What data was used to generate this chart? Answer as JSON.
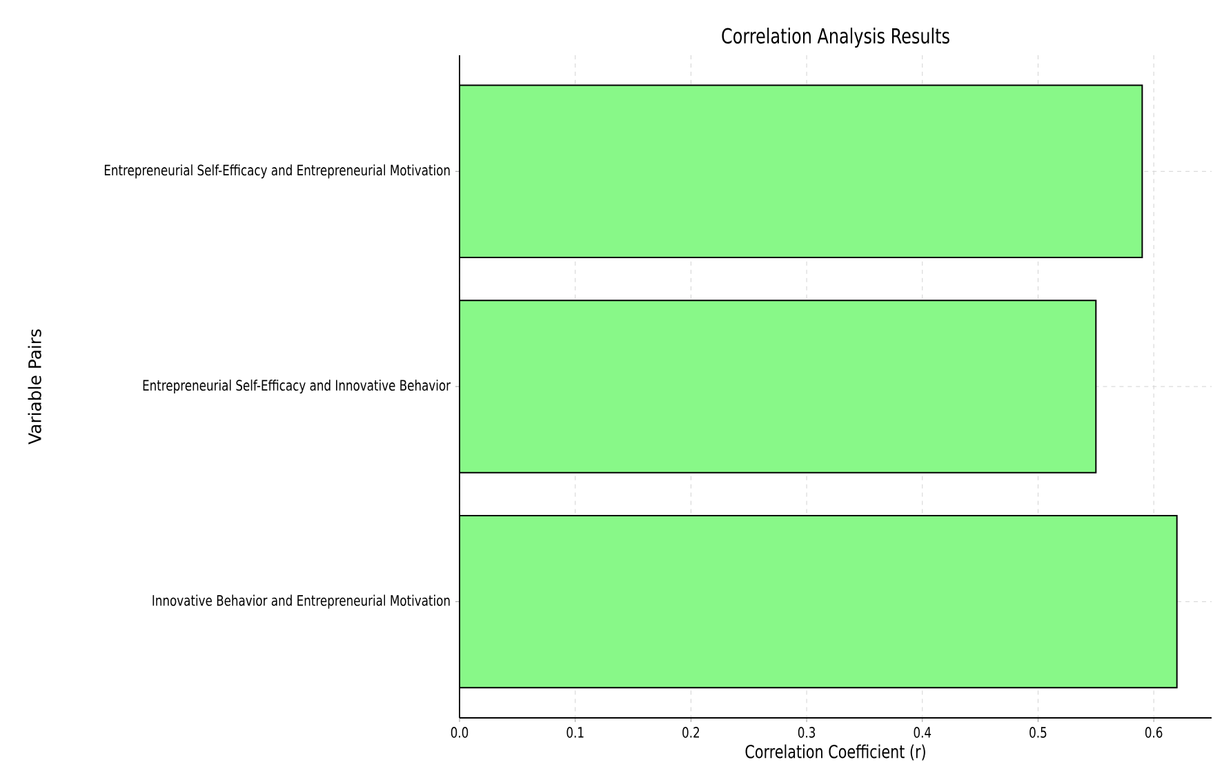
{
  "chart_data": {
    "type": "bar",
    "orientation": "horizontal",
    "title": "Correlation Analysis Results",
    "xlabel": "Correlation Coefficient (r)",
    "ylabel": "Variable Pairs",
    "categories": [
      "Entrepreneurial Self-Efficacy and Entrepreneurial Motivation",
      "Entrepreneurial Self-Efficacy and Innovative Behavior",
      "Innovative Behavior and Entrepreneurial Motivation"
    ],
    "values": [
      0.59,
      0.55,
      0.62
    ],
    "color": "#88f888",
    "xlim": [
      0,
      0.65
    ],
    "xticks": [
      {
        "value": 0,
        "label": "0.0"
      },
      {
        "value": 0.1,
        "label": "0.1"
      },
      {
        "value": 0.2,
        "label": "0.2"
      },
      {
        "value": 0.3,
        "label": "0.3"
      },
      {
        "value": 0.4,
        "label": "0.4"
      },
      {
        "value": 0.5,
        "label": "0.5"
      },
      {
        "value": 0.6,
        "label": "0.6"
      }
    ],
    "grid": true
  }
}
